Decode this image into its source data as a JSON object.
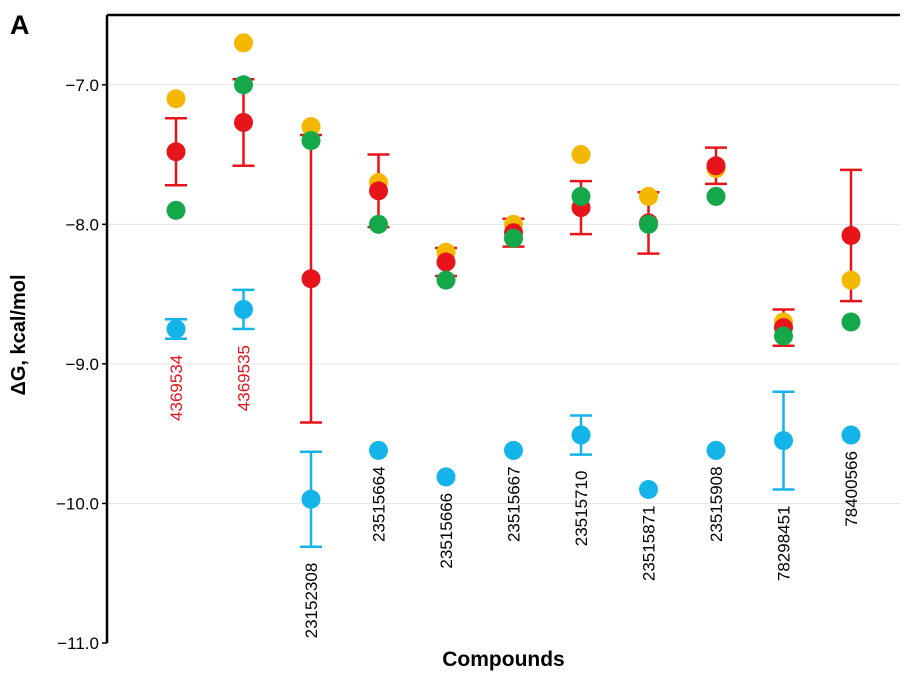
{
  "chart_data": {
    "type": "scatter",
    "panel_label": "A",
    "xlabel": "Compounds",
    "ylabel": "ΔG, kcal/mol",
    "ylim": [
      -11.0,
      -6.5
    ],
    "yticks": [
      "−7.0",
      "−8.0",
      "−9.0",
      "−10.0",
      "−11.0"
    ],
    "ytick_values": [
      -7.0,
      -8.0,
      -9.0,
      -10.0,
      -11.0
    ],
    "grid": "horizontal",
    "categories": [
      "4369534",
      "4369535",
      "23152308",
      "23515664",
      "23515666",
      "23515667",
      "23515710",
      "23515871",
      "23515908",
      "78298451",
      "78400566"
    ],
    "category_label_colors": [
      "#e8141c",
      "#e8141c",
      "#000000",
      "#000000",
      "#000000",
      "#000000",
      "#000000",
      "#000000",
      "#000000",
      "#000000",
      "#000000"
    ],
    "series": [
      {
        "color": "#f5b800",
        "values": [
          -7.1,
          -6.7,
          -7.3,
          -7.7,
          -8.2,
          -8.0,
          -7.5,
          -7.8,
          -7.6,
          -8.7,
          -8.4
        ],
        "err": [
          null,
          null,
          null,
          null,
          null,
          null,
          null,
          null,
          null,
          null,
          null
        ]
      },
      {
        "color": "#e8141c",
        "values": [
          -7.48,
          -7.27,
          -8.39,
          -7.76,
          -8.27,
          -8.06,
          -7.88,
          -7.99,
          -7.58,
          -8.74,
          -8.08
        ],
        "err": [
          0.24,
          0.31,
          1.03,
          0.26,
          0.1,
          0.1,
          0.19,
          0.22,
          0.13,
          0.13,
          0.47
        ]
      },
      {
        "color": "#14a84a",
        "values": [
          -7.9,
          -7.0,
          -7.4,
          -8.0,
          -8.4,
          -8.1,
          -7.8,
          -8.0,
          -7.8,
          -8.8,
          -8.7
        ],
        "err": [
          null,
          null,
          null,
          null,
          null,
          null,
          null,
          null,
          null,
          null,
          null
        ]
      },
      {
        "color": "#14b4ea",
        "values": [
          -8.75,
          -8.61,
          -9.97,
          -9.62,
          -9.81,
          -9.62,
          -9.51,
          -9.9,
          -9.62,
          -9.55,
          -9.51
        ],
        "err": [
          0.07,
          0.14,
          0.34,
          null,
          null,
          null,
          0.14,
          null,
          null,
          0.35,
          null
        ]
      }
    ]
  }
}
